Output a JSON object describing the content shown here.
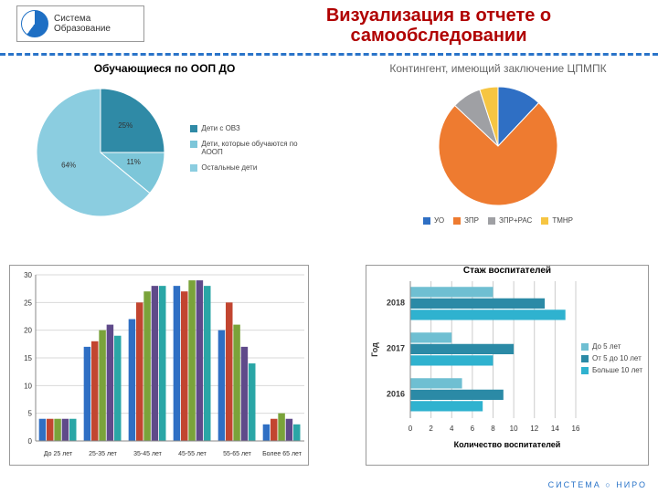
{
  "title_line1": "Визуализация в отчете о",
  "title_line2": "самообследовании",
  "logo_line1": "Система",
  "logo_line2": "Образование",
  "footer": "СИСТЕМА  ○ НИРО",
  "pie1": {
    "title": "Обучающиеся по ООП ДО",
    "slices": [
      {
        "label": "Дети с ОВЗ",
        "pct": 25,
        "color": "#2f8aa6",
        "data_label": "25%"
      },
      {
        "label": "Дети, которые обучаются по АООП",
        "pct": 11,
        "color": "#7cc6d9",
        "data_label": "11%"
      },
      {
        "label": "Остальные дети",
        "pct": 64,
        "color": "#8bcde0",
        "data_label": "64%"
      }
    ],
    "title_fontsize": 12,
    "label_fontsize": 8,
    "background": "#ffffff"
  },
  "pie2": {
    "title": "Контингент, имеющий заключение ЦПМПК",
    "slices": [
      {
        "label": "УО",
        "pct": 12,
        "color": "#2f6fc4"
      },
      {
        "label": "ЗПР",
        "pct": 75,
        "color": "#ee7b30"
      },
      {
        "label": "ЗПР+РАС",
        "pct": 8,
        "color": "#9fa0a4"
      },
      {
        "label": "ТМНР",
        "pct": 5,
        "color": "#f6c542"
      }
    ],
    "title_fontsize": 12,
    "background": "#ffffff"
  },
  "bars": {
    "categories": [
      "До 25 лет",
      "25-35 лет",
      "35-45 лет",
      "45-55 лет",
      "55-65 лет",
      "Более 65 лет"
    ],
    "series": [
      {
        "color": "#2f6fc4",
        "values": [
          4,
          17,
          22,
          28,
          20,
          3
        ]
      },
      {
        "color": "#c24530",
        "values": [
          4,
          18,
          25,
          27,
          25,
          4
        ]
      },
      {
        "color": "#7aa33a",
        "values": [
          4,
          20,
          27,
          29,
          21,
          5
        ]
      },
      {
        "color": "#5f4a8a",
        "values": [
          4,
          21,
          28,
          29,
          17,
          4
        ]
      },
      {
        "color": "#2aa6a6",
        "values": [
          4,
          19,
          28,
          28,
          14,
          3
        ]
      }
    ],
    "ylim": [
      0,
      30
    ],
    "ytick_step": 5,
    "grid_color": "#d9d9d9",
    "background": "#ffffff",
    "label_fontsize": 8
  },
  "hbar": {
    "title": "Стаж воспитателей",
    "yaxis_label": "Год",
    "xaxis_label": "Количество воспитателей",
    "years": [
      "2018",
      "2017",
      "2016"
    ],
    "legend": [
      {
        "label": "До 5 лет",
        "color": "#6fbfd2"
      },
      {
        "label": "От 5 до 10 лет",
        "color": "#2b8aa6"
      },
      {
        "label": "Больше 10 лет",
        "color": "#2fb2cf"
      }
    ],
    "data": {
      "2018": [
        8,
        13,
        15
      ],
      "2017": [
        4,
        10,
        8
      ],
      "2016": [
        5,
        9,
        7
      ]
    },
    "xlim": [
      0,
      16
    ],
    "xtick_step": 2,
    "background": "#ffffff",
    "grid_color": "#cccccc",
    "title_fontsize": 10,
    "label_fontsize": 8
  }
}
